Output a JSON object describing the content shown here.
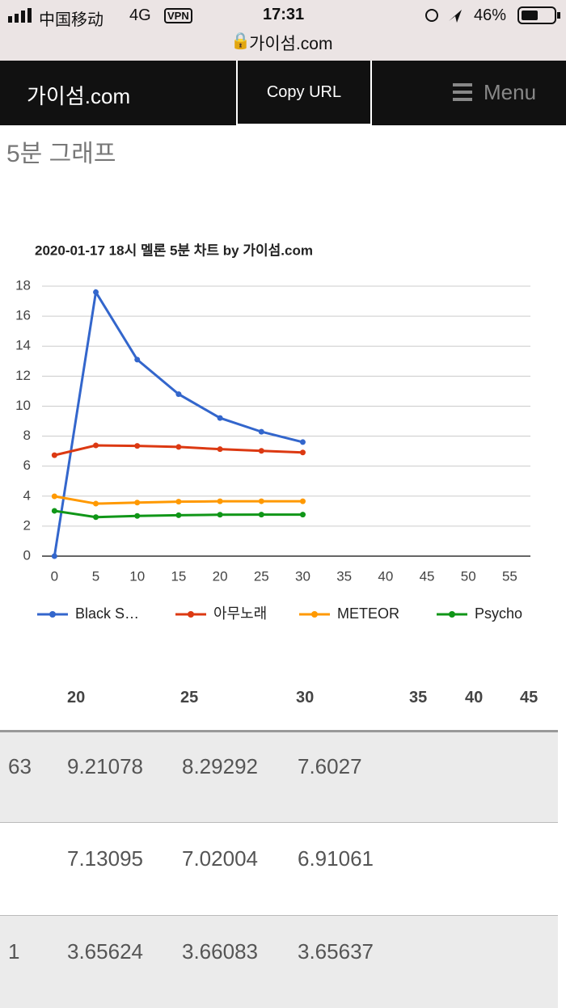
{
  "status_bar": {
    "carrier": "中国移动",
    "network": "4G",
    "vpn": "VPN",
    "time": "17:31",
    "battery": "46%",
    "url": "가이섬.com"
  },
  "header": {
    "logo": "가이섬.com",
    "copy_button": "Copy URL",
    "menu": "Menu"
  },
  "section_title": "5분 그래프",
  "chart_data": {
    "type": "line",
    "title": "2020-01-17 18시 멜론 5분 차트 by 가이섬.com",
    "x": [
      0,
      5,
      10,
      15,
      20,
      25,
      30
    ],
    "series": [
      {
        "name": "Black S…",
        "color": "#3366cc",
        "values": [
          0,
          17.6,
          13.1,
          10.8,
          9.21078,
          8.29292,
          7.6027
        ]
      },
      {
        "name": "아무노래",
        "color": "#dc3912",
        "values": [
          6.73,
          7.38,
          7.35,
          7.28,
          7.13095,
          7.02004,
          6.91061
        ]
      },
      {
        "name": "METEOR",
        "color": "#ff9900",
        "values": [
          3.99,
          3.5,
          3.57,
          3.63,
          3.65624,
          3.66083,
          3.65637
        ]
      },
      {
        "name": "Psycho",
        "color": "#109618",
        "values": [
          3.02,
          2.6,
          2.68,
          2.73,
          2.76,
          2.77,
          2.77
        ]
      }
    ],
    "xlim": [
      -1.5,
      57.5
    ],
    "xticks": [
      0,
      5,
      10,
      15,
      20,
      25,
      30,
      35,
      40,
      45,
      50,
      55
    ],
    "ylim": [
      0,
      18
    ],
    "yticks": [
      0,
      2,
      4,
      6,
      8,
      10,
      12,
      14,
      16,
      18
    ],
    "grid": true,
    "legend": "bottom"
  },
  "table": {
    "columns": [
      "20",
      "25",
      "30",
      "35",
      "40",
      "45"
    ],
    "rows": [
      [
        "63",
        "9.21078",
        "8.29292",
        "7.6027"
      ],
      [
        "7.13095",
        "7.02004",
        "6.91061"
      ],
      [
        "1",
        "3.65624",
        "3.66083",
        "3.65637"
      ]
    ]
  }
}
